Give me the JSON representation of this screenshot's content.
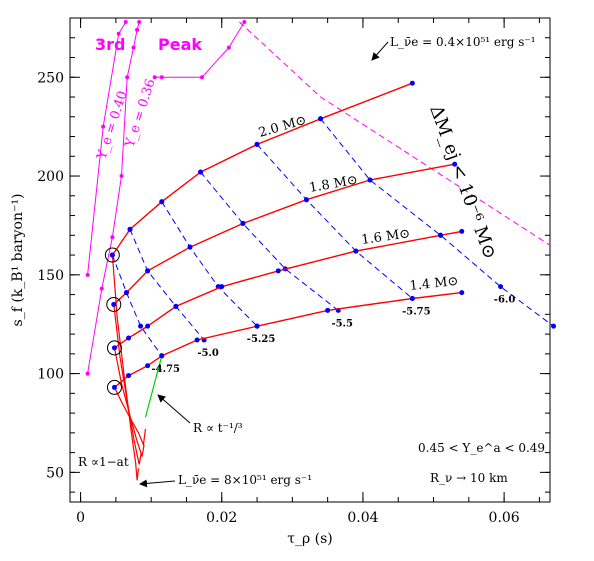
{
  "chart_data": {
    "type": "line",
    "xlabel": "τ_ρ  (s)",
    "ylabel": "s_f  (k_B¹ baryon⁻¹)",
    "xlim": [
      -0.0015,
      0.0665
    ],
    "ylim": [
      35,
      280
    ],
    "x_ticks": [
      "0",
      "0.02",
      "0.04",
      "0.06"
    ],
    "y_ticks": [
      "50",
      "100",
      "150",
      "200",
      "250"
    ],
    "series": [
      {
        "name": "2.0 M⊙",
        "color": "#ff0000",
        "points": [
          [
            0.0045,
            160
          ],
          [
            0.007,
            173
          ],
          [
            0.0115,
            187
          ],
          [
            0.017,
            202
          ],
          [
            0.025,
            216
          ],
          [
            0.034,
            229
          ],
          [
            0.047,
            247
          ]
        ]
      },
      {
        "name": "1.8 M⊙",
        "color": "#ff0000",
        "points": [
          [
            0.0047,
            135
          ],
          [
            0.0065,
            141
          ],
          [
            0.0095,
            152
          ],
          [
            0.0155,
            164
          ],
          [
            0.023,
            176
          ],
          [
            0.032,
            188
          ],
          [
            0.041,
            198
          ],
          [
            0.053,
            206
          ]
        ]
      },
      {
        "name": "1.6 M⊙",
        "color": "#ff0000",
        "points": [
          [
            0.0048,
            113
          ],
          [
            0.0068,
            118
          ],
          [
            0.0095,
            124
          ],
          [
            0.0135,
            134
          ],
          [
            0.02,
            144
          ],
          [
            0.028,
            152
          ],
          [
            0.039,
            162
          ],
          [
            0.051,
            170
          ],
          [
            0.054,
            172
          ]
        ]
      },
      {
        "name": "1.4 M⊙",
        "color": "#ff0000",
        "points": [
          [
            0.0048,
            93
          ],
          [
            0.0068,
            99
          ],
          [
            0.0095,
            104
          ],
          [
            0.0115,
            109
          ],
          [
            0.0165,
            117
          ],
          [
            0.025,
            124
          ],
          [
            0.035,
            132
          ],
          [
            0.047,
            138
          ],
          [
            0.054,
            141
          ]
        ]
      }
    ],
    "trajectories": [
      {
        "color": "#ff0000",
        "points": [
          [
            0.0045,
            160
          ],
          [
            0.0052,
            128
          ],
          [
            0.0062,
            98
          ],
          [
            0.0072,
            70
          ],
          [
            0.0078,
            55
          ],
          [
            0.008,
            46
          ],
          [
            0.0082,
            52
          ]
        ]
      },
      {
        "color": "#ff0000",
        "points": [
          [
            0.0047,
            135
          ],
          [
            0.0056,
            108
          ],
          [
            0.0066,
            86
          ],
          [
            0.0076,
            66
          ],
          [
            0.0083,
            54
          ],
          [
            0.0086,
            60
          ]
        ]
      },
      {
        "color": "#ff0000",
        "points": [
          [
            0.0048,
            113
          ],
          [
            0.0058,
            95
          ],
          [
            0.0069,
            80
          ],
          [
            0.0079,
            67
          ],
          [
            0.0087,
            58
          ],
          [
            0.009,
            64
          ]
        ]
      },
      {
        "color": "#ff0000",
        "points": [
          [
            0.0048,
            93
          ],
          [
            0.0059,
            85
          ],
          [
            0.0071,
            77
          ],
          [
            0.0082,
            70
          ],
          [
            0.0089,
            64
          ],
          [
            0.0092,
            72
          ]
        ]
      }
    ],
    "r_law_line": {
      "color": "#00cc00",
      "points": [
        [
          0.0092,
          78
        ],
        [
          0.0115,
          109
        ]
      ]
    },
    "contours": [
      {
        "label": "-4.75",
        "color": "#0000ff",
        "points": [
          [
            0.0045,
            160
          ],
          [
            0.0065,
            141
          ],
          [
            0.0085,
            124
          ],
          [
            0.0115,
            109
          ]
        ]
      },
      {
        "label": "-5.0",
        "color": "#0000ff",
        "points": [
          [
            0.007,
            173
          ],
          [
            0.0095,
            152
          ],
          [
            0.0135,
            134
          ],
          [
            0.0175,
            117
          ]
        ]
      },
      {
        "label": "-5.25",
        "color": "#0000ff",
        "points": [
          [
            0.0115,
            187
          ],
          [
            0.0155,
            164
          ],
          [
            0.0195,
            144
          ],
          [
            0.025,
            124
          ]
        ]
      },
      {
        "label": "-5.5",
        "color": "#0000ff",
        "points": [
          [
            0.017,
            202
          ],
          [
            0.023,
            176
          ],
          [
            0.029,
            153
          ],
          [
            0.0365,
            132
          ]
        ]
      },
      {
        "label": "-5.75",
        "color": "#0000ff",
        "points": [
          [
            0.025,
            216
          ],
          [
            0.032,
            188
          ],
          [
            0.039,
            162
          ],
          [
            0.047,
            138
          ]
        ]
      },
      {
        "label": "-6.0",
        "color": "#0000ff",
        "points": [
          [
            0.034,
            229
          ],
          [
            0.041,
            198
          ],
          [
            0.051,
            170
          ],
          [
            0.0595,
            144
          ],
          [
            0.067,
            124
          ]
        ]
      }
    ],
    "magenta_dashed": {
      "color": "#ff00ff",
      "points": [
        [
          0.0225,
          278
        ],
        [
          0.034,
          240
        ],
        [
          0.047,
          210
        ],
        [
          0.06,
          180
        ],
        [
          0.0665,
          165
        ]
      ]
    },
    "ye_curves": [
      {
        "label": "Y_e = 0.40",
        "color": "#ff00ff",
        "points": [
          [
            0.001,
            150
          ],
          [
            0.0032,
            225
          ],
          [
            0.0054,
            272
          ],
          [
            0.0064,
            278
          ]
        ]
      },
      {
        "label": "Y_e = 0.36",
        "color": "#ff00ff",
        "points": [
          [
            0.001,
            100
          ],
          [
            0.003,
            143
          ],
          [
            0.0045,
            169
          ],
          [
            0.0058,
            200
          ],
          [
            0.0066,
            250
          ],
          [
            0.0075,
            265
          ],
          [
            0.008,
            274
          ],
          [
            0.0083,
            278
          ]
        ]
      },
      {
        "color": "#ff00ff",
        "points": [
          [
            0.0105,
            250
          ],
          [
            0.0115,
            250
          ],
          [
            0.0172,
            250
          ],
          [
            0.021,
            265
          ],
          [
            0.0232,
            278
          ]
        ]
      }
    ],
    "circles": [
      [
        0.0045,
        160
      ],
      [
        0.0047,
        135
      ],
      [
        0.0048,
        113
      ],
      [
        0.0048,
        93
      ]
    ],
    "annotations": {
      "peak_left": "3rd",
      "peak_right": "Peak",
      "ye40": "Y_e = 0.40",
      "ye36": "Y_e = 0.36",
      "l_top": "L_ν̄e = 0.4×10⁵¹ erg s⁻¹",
      "l_bottom": "L_ν̄e = 8×10⁵¹ erg s⁻¹",
      "dm": "ΔM_ej < 10⁻⁶ M⊙",
      "r_t": "R ∝ t⁻¹/³",
      "r_lin": "R ∝1−at",
      "ye_range": "0.45 < Y_e^a < 0.49",
      "rnu": "R_ν → 10 km"
    }
  }
}
